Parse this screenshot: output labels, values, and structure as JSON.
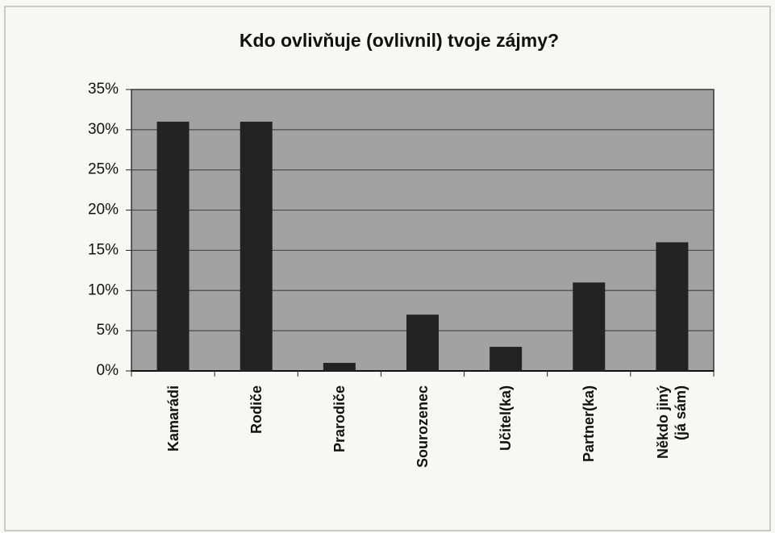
{
  "chart_data": {
    "type": "bar",
    "title": "Kdo ovlivňuje (ovlivnil) tvoje zájmy?",
    "categories": [
      "Kamarádi",
      "Rodiče",
      "Prarodiče",
      "Sourozenec",
      "Učitel(ka)",
      "Partner(ka)",
      "Někdo jiný\n(já sám)"
    ],
    "values": [
      31,
      31,
      1,
      7,
      3,
      11,
      16
    ],
    "color": "#232323",
    "ylim": [
      0,
      35
    ],
    "yticks": [
      {
        "value": 0,
        "label": "0%"
      },
      {
        "value": 5,
        "label": "5%"
      },
      {
        "value": 10,
        "label": "10%"
      },
      {
        "value": 15,
        "label": "15%"
      },
      {
        "value": 20,
        "label": "20%"
      },
      {
        "value": 25,
        "label": "25%"
      },
      {
        "value": 30,
        "label": "30%"
      },
      {
        "value": 35,
        "label": "35%"
      }
    ],
    "grid": true
  }
}
